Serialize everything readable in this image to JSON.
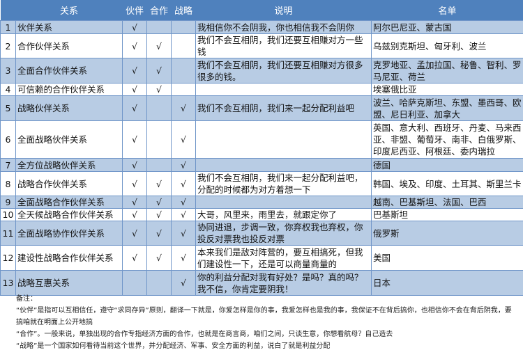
{
  "table": {
    "headers": [
      "",
      "关系",
      "伙伴",
      "合作",
      "战略",
      "说明",
      "名单"
    ],
    "check_mark": "√",
    "rows": [
      {
        "num": "1",
        "relation": "伙伴关系",
        "partner": "√",
        "coop": "",
        "strategic": "",
        "desc": "我相信你不会阴我，你也相信我不会阴你",
        "list": "阿尔巴尼亚、蒙古国"
      },
      {
        "num": "2",
        "relation": "合作伙伴关系",
        "partner": "√",
        "coop": "√",
        "strategic": "",
        "desc": "我们不会互相阴，我们还要互相赚对方一些钱",
        "list": "乌兹别克斯坦、匈牙利、波兰"
      },
      {
        "num": "3",
        "relation": "全面合作伙伴关系",
        "partner": "√",
        "coop": "√",
        "strategic": "",
        "desc": "我们不会互相阴，我们还要互相赚对方很多很多的钱。",
        "list": "克罗地亚、孟加拉国、秘鲁、智利、罗马尼亚、荷兰"
      },
      {
        "num": "4",
        "relation": "可信赖的合作伙伴关系",
        "partner": "√",
        "coop": "√",
        "strategic": "",
        "desc": "",
        "list": "埃塞俄比亚"
      },
      {
        "num": "5",
        "relation": "战略伙伴关系",
        "partner": "√",
        "coop": "",
        "strategic": "√",
        "desc": "我们不会互相阴，我们来一起分配利益吧",
        "list": "波兰、哈萨克斯坦、东盟、墨西哥、欧盟、尼日利亚、加拿大"
      },
      {
        "num": "6",
        "relation": "全面战略伙伴关系",
        "partner": "√",
        "coop": "",
        "strategic": "√",
        "desc": "",
        "list": "英国、意大利、西班牙、丹麦、马来西亚、非盟、葡萄牙、南非、白俄罗斯、印度尼西亚、阿根廷、委内瑞拉"
      },
      {
        "num": "7",
        "relation": "全方位战略伙伴关系",
        "partner": "√",
        "coop": "",
        "strategic": "√",
        "desc": "",
        "list": "德国"
      },
      {
        "num": "8",
        "relation": "战略合作伙伴关系",
        "partner": "√",
        "coop": "√",
        "strategic": "√",
        "desc": "我们不会互相阴，我们来一起分配利益吧，分配的时候都为对方着想一下",
        "list": "韩国、埃及、印度、土耳其、斯里兰卡"
      },
      {
        "num": "9",
        "relation": "全面战略合作伙伴关系",
        "partner": "√",
        "coop": "√",
        "strategic": "√",
        "desc": "",
        "list": "越南、巴基斯坦、法国、巴西"
      },
      {
        "num": "10",
        "relation": "全天候战略合作伙伴关系",
        "partner": "√",
        "coop": "√",
        "strategic": "√",
        "desc": "大哥，风里来，雨里去，就跟定你了",
        "list": "巴基斯坦"
      },
      {
        "num": "11",
        "relation": "全面战略协作伙伴关系",
        "partner": "√",
        "coop": "√",
        "strategic": "√",
        "desc": "协同进退，步调一致，你弃权我也弃权，你投反对票我也投反对票",
        "list": "俄罗斯"
      },
      {
        "num": "12",
        "relation": "建设性战略合作伙伴关系",
        "partner": "√",
        "coop": "√",
        "strategic": "√",
        "desc": "本来我们是敌对阵营的，要互相搞死，但我们建设性一下，还是可以商量商量的",
        "list": "美国"
      },
      {
        "num": "13",
        "relation": "战略互惠关系",
        "partner": "",
        "coop": "",
        "strategic": "√",
        "desc": "你的利益分配对我有好处？是吗？真的吗？我不信，你肯定要阴我！",
        "list": "日本"
      }
    ]
  },
  "notes": {
    "title": "备注：",
    "lines": [
      "“伙伴”是指可以互相信任，遵守“求同存异”原则，翻译一下就是，你爱怎样是你的事，我爱怎样也是我的事，我保证不在背后搞你，也相信你不会在背后阴我，要搞咱就在明面上公开地搞",
      "“合作”。一般来说，单独出现的合作专指经济方面的合作，也就是在商言商，咱们之间，只谈生意，你想看航母？自己造去",
      "“战略”是一个国家如何看待当前这个世界，并分配经济、军事、安全方面的利益，说白了就是利益分配"
    ]
  },
  "colors": {
    "header": "#4f81bd",
    "band": "#b8cce4",
    "border": "#6f95c8"
  }
}
